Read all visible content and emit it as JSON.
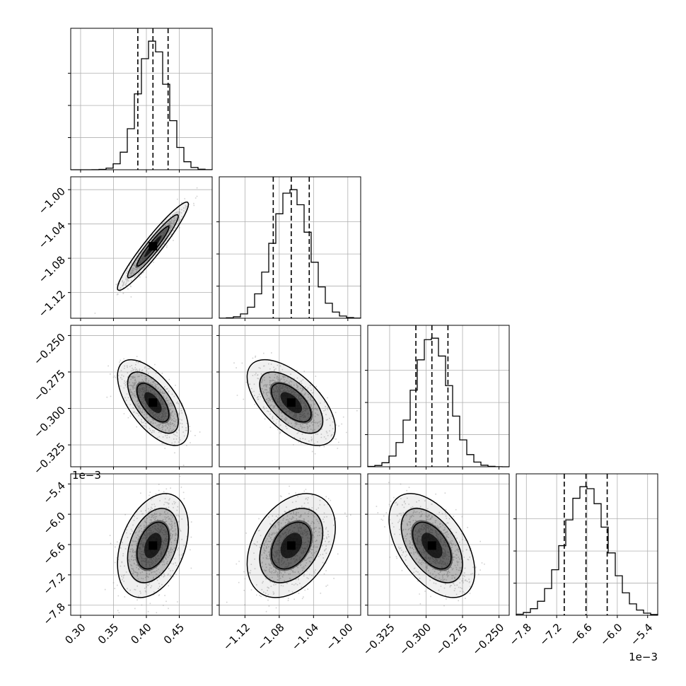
{
  "chart_data": {
    "type": "corner",
    "parameters": [
      {
        "median": 0.41,
        "sigma": 0.022,
        "q16": 0.387,
        "q50": 0.41,
        "q84": 0.433,
        "range": [
          0.285,
          0.5
        ],
        "ticks": [
          0.3,
          0.35,
          0.4,
          0.45
        ],
        "tick_labels": [
          "0.30",
          "0.35",
          "0.40",
          "0.45"
        ],
        "offset_text": ""
      },
      {
        "median": -1.066,
        "sigma": 0.021,
        "q16": -1.087,
        "q50": -1.066,
        "q84": -1.045,
        "range": [
          -1.15,
          -0.985
        ],
        "ticks": [
          -1.12,
          -1.08,
          -1.04,
          -1.0
        ],
        "tick_labels": [
          "−1.12",
          "−1.08",
          "−1.04",
          "−1.00"
        ],
        "offset_text": ""
      },
      {
        "median": -0.296,
        "sigma": 0.012,
        "q16": -0.307,
        "q50": -0.296,
        "q84": -0.285,
        "range": [
          -0.34,
          -0.243
        ],
        "ticks": [
          -0.325,
          -0.3,
          -0.275,
          -0.25
        ],
        "tick_labels": [
          "−0.325",
          "−0.300",
          "−0.275",
          "−0.250"
        ],
        "offset_text": ""
      },
      {
        "median": -6.62,
        "sigma": 0.42,
        "q16": -7.05,
        "q50": -6.62,
        "q84": -6.2,
        "range": [
          -8.0,
          -5.2
        ],
        "ticks": [
          -7.8,
          -7.2,
          -6.6,
          -6.0,
          -5.4
        ],
        "tick_labels": [
          "−7.8",
          "−7.2",
          "−6.6",
          "−6.0",
          "−5.4"
        ],
        "offset_text": "1e−3"
      }
    ],
    "correlations": [
      [
        1.0,
        0.95,
        -0.62,
        0.35
      ],
      [
        0.95,
        1.0,
        -0.6,
        0.35
      ],
      [
        -0.62,
        -0.6,
        1.0,
        -0.5
      ],
      [
        0.35,
        0.35,
        -0.5,
        1.0
      ]
    ],
    "y_tick_labels_rows": {
      "1": [
        "−1.00",
        "−1.04",
        "−1.08",
        "−1.12"
      ],
      "2": [
        "−0.250",
        "−0.275",
        "−0.300",
        "−0.325"
      ],
      "3": [
        "−5.4",
        "−6.0",
        "−6.6",
        "−7.2",
        "−7.8"
      ]
    },
    "quantiles": [
      0.16,
      0.5,
      0.84
    ],
    "grid": true,
    "colors": {
      "hist": "#000000",
      "samples": "#7a7a7a",
      "contour_fill": "#000000"
    }
  }
}
